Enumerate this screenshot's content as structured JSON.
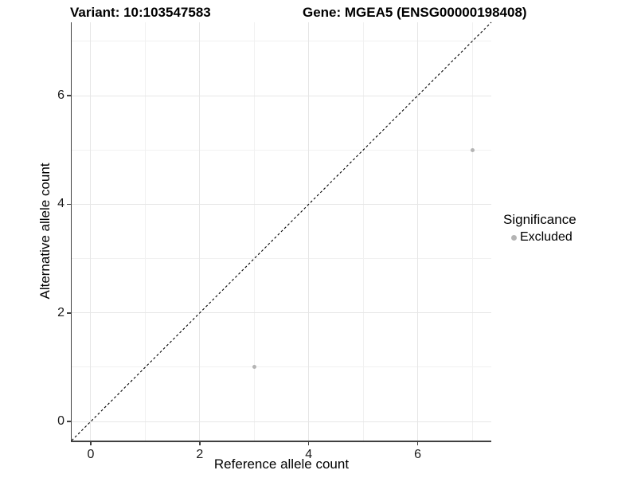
{
  "chart_data": {
    "type": "scatter",
    "titles": {
      "left": "Variant: 10:103547583",
      "right": "Gene: MGEA5 (ENSG00000198408)"
    },
    "xlabel": "Reference allele count",
    "ylabel": "Alternative allele count",
    "xlim": [
      -0.35,
      7.35
    ],
    "ylim": [
      -0.35,
      7.35
    ],
    "x_ticks": [
      0,
      2,
      4,
      6
    ],
    "y_ticks": [
      0,
      2,
      4,
      6
    ],
    "x_minor_gridlines": [
      1,
      3,
      5,
      7
    ],
    "y_minor_gridlines": [
      1,
      3,
      5,
      7
    ],
    "grid": true,
    "series": [
      {
        "name": "Excluded",
        "color": "#b4b4b4",
        "marker": "circle",
        "marker_size_px": 5,
        "points": [
          {
            "x": 3,
            "y": 1
          },
          {
            "x": 7,
            "y": 5
          }
        ]
      }
    ],
    "reference_line": {
      "kind": "identity y = x",
      "style": "dashed",
      "color": "#000000"
    },
    "legend": {
      "title": "Significance",
      "position": "right",
      "items": [
        {
          "label": "Excluded",
          "color": "#b4b4b4"
        }
      ]
    },
    "colors": {
      "background": "#ffffff",
      "axis_line": "#404040",
      "major_grid": "#e6e6e6",
      "minor_grid": "#f1f1f1",
      "tick_label": "#1a1a1a",
      "title": "#000000"
    }
  }
}
